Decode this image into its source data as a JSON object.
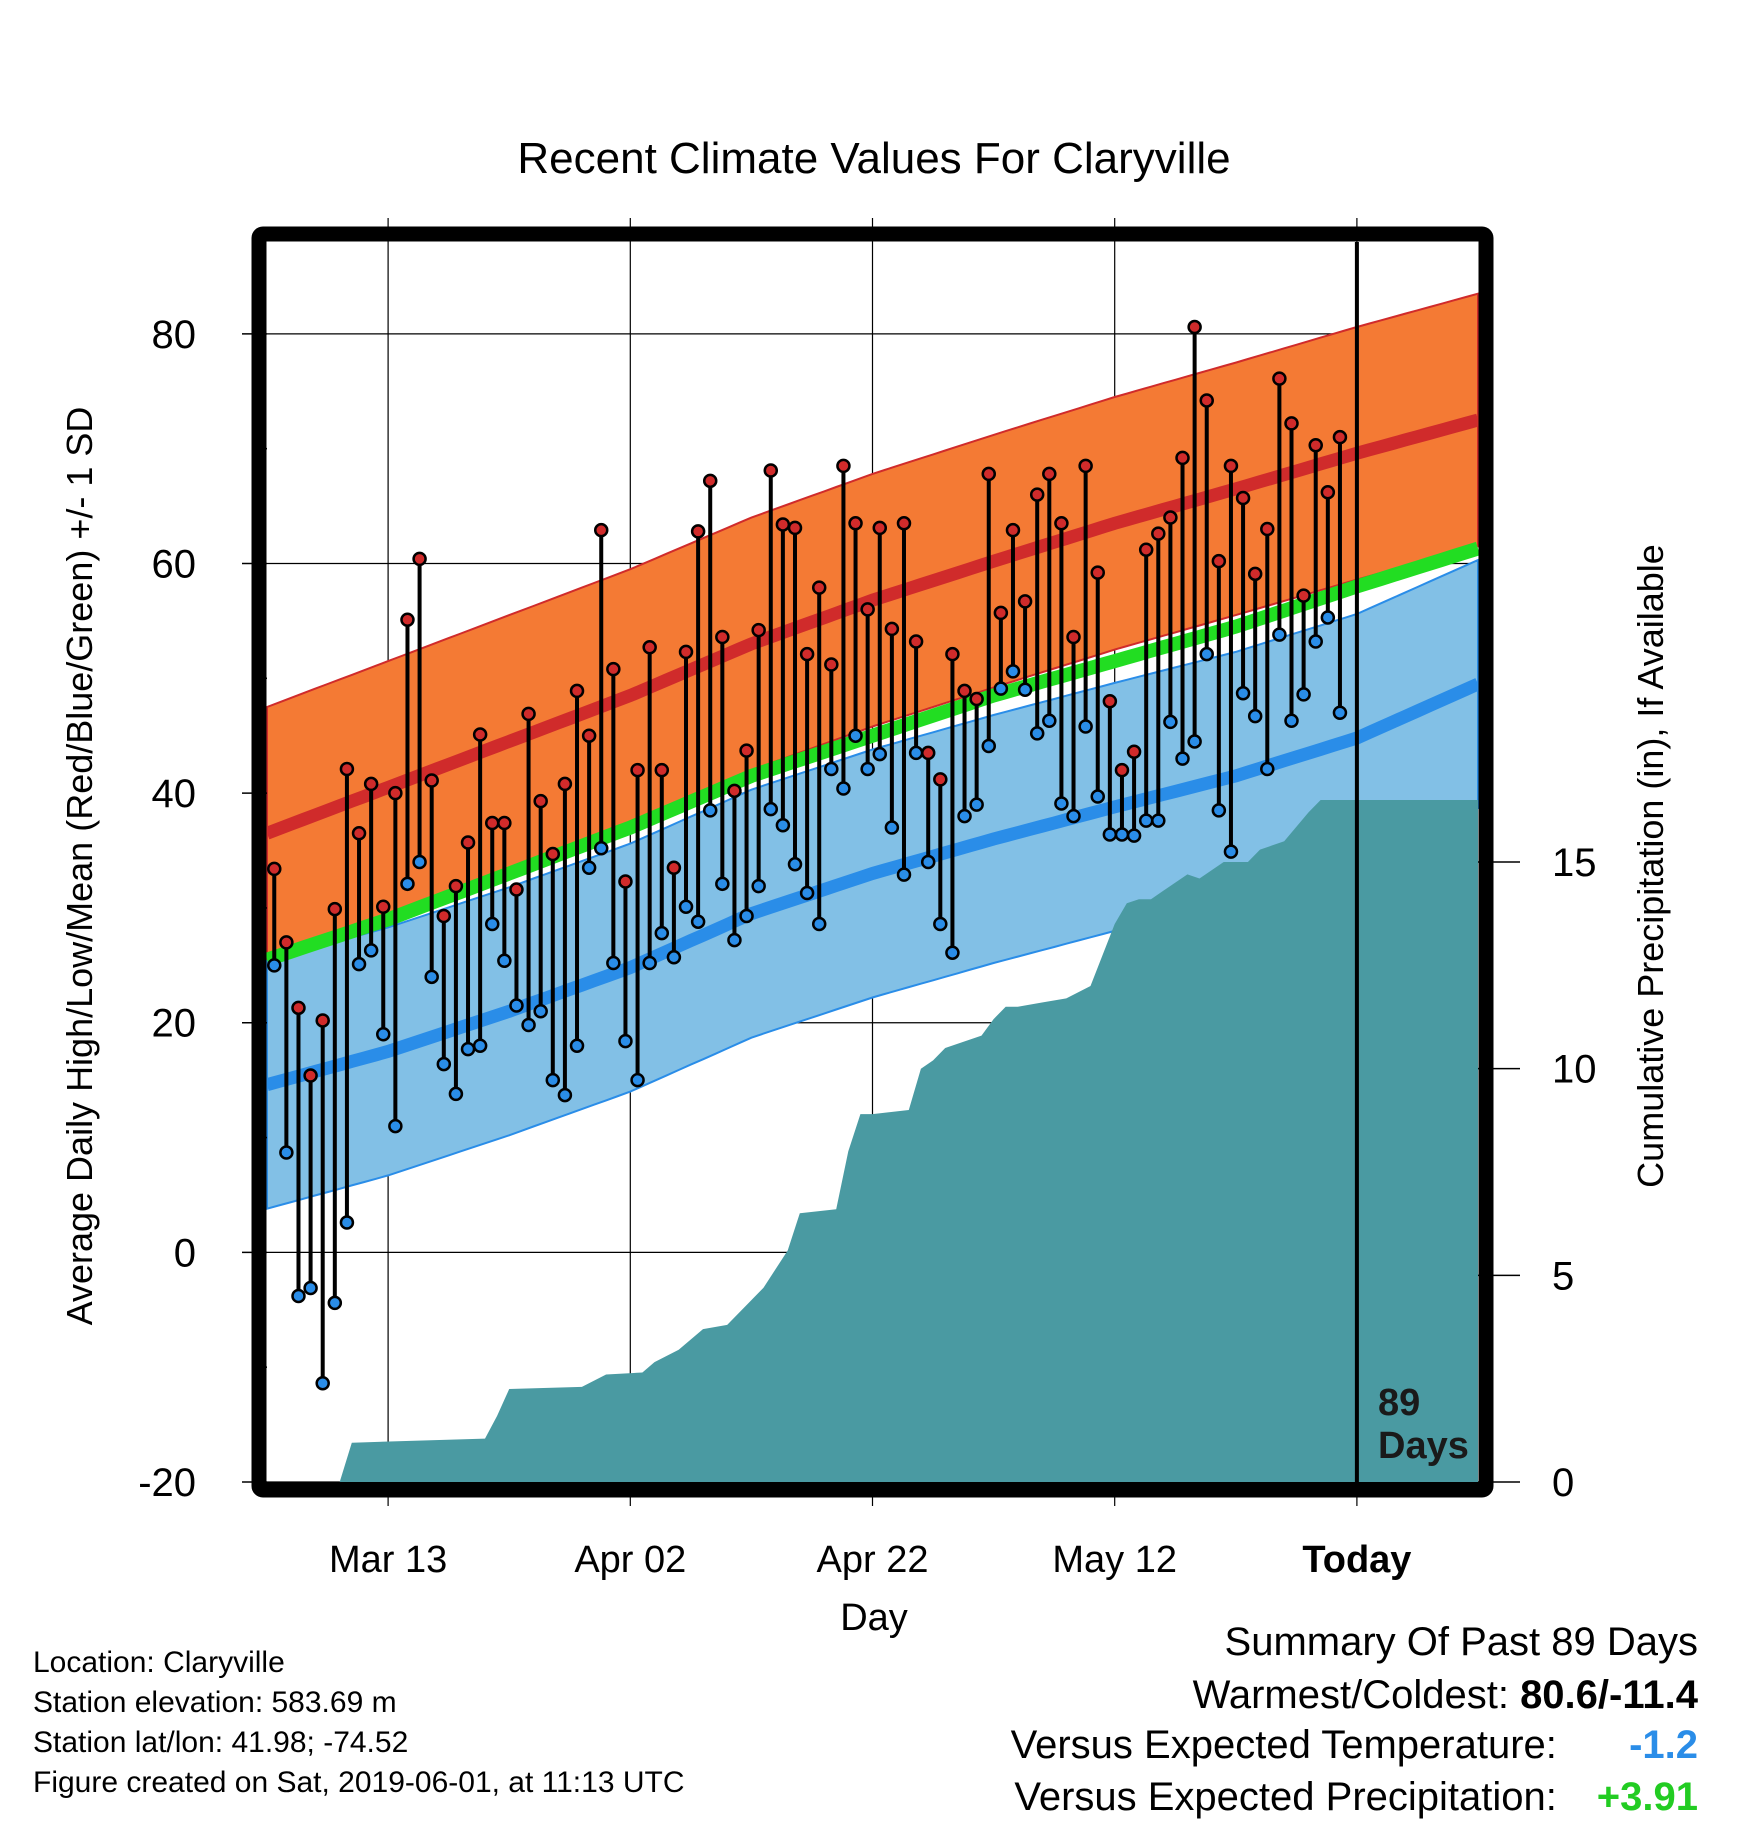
{
  "chart_data": {
    "type": "line",
    "title": "Recent Climate Values For Claryville",
    "xlabel": "Day",
    "ylabel": "Average Daily High/Low/Mean (Red/Blue/Green) +/- 1 SD",
    "y2label": "Cumulative Precipitation (in), If Available",
    "ylim": [
      -20,
      88
    ],
    "y2lim": [
      0,
      30
    ],
    "xlim_days": [
      0,
      100
    ],
    "yticks": [
      "-20",
      "0",
      "20",
      "40",
      "60",
      "80"
    ],
    "y2ticks": [
      "0",
      "5",
      "10",
      "15"
    ],
    "xticks": [
      {
        "day": 10,
        "label": "Mar 13"
      },
      {
        "day": 30,
        "label": "Apr 02"
      },
      {
        "day": 50,
        "label": "Apr 22"
      },
      {
        "day": 70,
        "label": "May 12"
      },
      {
        "day": 90,
        "label": "Today"
      }
    ],
    "today_marker": {
      "day": 90,
      "label_1": "89",
      "label_2": "Days"
    },
    "normal_high": {
      "x": [
        0,
        10,
        20,
        30,
        40,
        50,
        60,
        70,
        80,
        90,
        100
      ],
      "mean": [
        36.5,
        40.5,
        44.5,
        48.5,
        53,
        56.8,
        60.2,
        63.5,
        66.5,
        69.6,
        72.5
      ],
      "sd": 11
    },
    "normal_low": {
      "x": [
        0,
        10,
        20,
        30,
        40,
        50,
        60,
        70,
        80,
        90,
        100
      ],
      "mean": [
        14.6,
        17.5,
        21,
        24.8,
        29.5,
        33,
        36,
        38.8,
        41.5,
        44.8,
        49.5
      ],
      "sd": 10.8
    },
    "normal_mean": {
      "x": [
        0,
        10,
        20,
        30,
        40,
        50,
        60,
        70,
        80,
        90,
        100
      ],
      "values": [
        25.5,
        29,
        33,
        37,
        41.5,
        45,
        48.5,
        51.5,
        54.5,
        58,
        61.3
      ]
    },
    "daily": [
      {
        "high": 33.4,
        "low": 25
      },
      {
        "high": 27,
        "low": 8.7
      },
      {
        "high": 21.3,
        "low": -3.8
      },
      {
        "high": 15.4,
        "low": -3.1
      },
      {
        "high": 20.2,
        "low": -11.4
      },
      {
        "high": 29.9,
        "low": -4.4
      },
      {
        "high": 42.1,
        "low": 2.6
      },
      {
        "high": 36.5,
        "low": 25.1
      },
      {
        "high": 40.8,
        "low": 26.3
      },
      {
        "high": 30.1,
        "low": 19
      },
      {
        "high": 40,
        "low": 11
      },
      {
        "high": 55.1,
        "low": 32.1
      },
      {
        "high": 60.4,
        "low": 34
      },
      {
        "high": 41.1,
        "low": 24
      },
      {
        "high": 29.3,
        "low": 16.4
      },
      {
        "high": 31.9,
        "low": 13.8
      },
      {
        "high": 35.7,
        "low": 17.7
      },
      {
        "high": 45.1,
        "low": 18
      },
      {
        "high": 37.4,
        "low": 28.6
      },
      {
        "high": 37.4,
        "low": 25.4
      },
      {
        "high": 31.6,
        "low": 21.5
      },
      {
        "high": 46.9,
        "low": 19.8
      },
      {
        "high": 39.3,
        "low": 21
      },
      {
        "high": 34.7,
        "low": 15
      },
      {
        "high": 40.8,
        "low": 13.7
      },
      {
        "high": 48.9,
        "low": 18
      },
      {
        "high": 45,
        "low": 33.5
      },
      {
        "high": 62.9,
        "low": 35.2
      },
      {
        "high": 50.8,
        "low": 25.2
      },
      {
        "high": 32.3,
        "low": 18.4
      },
      {
        "high": 42,
        "low": 15
      },
      {
        "high": 52.7,
        "low": 25.2
      },
      {
        "high": 42,
        "low": 27.8
      },
      {
        "high": 33.5,
        "low": 25.7
      },
      {
        "high": 52.3,
        "low": 30.1
      },
      {
        "high": 62.8,
        "low": 28.8
      },
      {
        "high": 67.2,
        "low": 38.5
      },
      {
        "high": 53.6,
        "low": 32.1
      },
      {
        "high": 40.2,
        "low": 27.2
      },
      {
        "high": 43.7,
        "low": 29.3
      },
      {
        "high": 54.2,
        "low": 31.9
      },
      {
        "high": 68.1,
        "low": 38.6
      },
      {
        "high": 63.4,
        "low": 37.2
      },
      {
        "high": 63.1,
        "low": 33.8
      },
      {
        "high": 52.1,
        "low": 31.3
      },
      {
        "high": 57.9,
        "low": 28.6
      },
      {
        "high": 51.2,
        "low": 42.1
      },
      {
        "high": 68.5,
        "low": 40.4
      },
      {
        "high": 63.5,
        "low": 45
      },
      {
        "high": 56,
        "low": 42.1
      },
      {
        "high": 63.1,
        "low": 43.4
      },
      {
        "high": 54.3,
        "low": 37
      },
      {
        "high": 63.5,
        "low": 32.9
      },
      {
        "high": 53.2,
        "low": 43.5
      },
      {
        "high": 43.5,
        "low": 34
      }
    ],
    "daily_late": [
      {
        "high": 41.2,
        "low": 28.6
      },
      {
        "high": 52.1,
        "low": 26.1
      },
      {
        "high": 48.9,
        "low": 38
      },
      {
        "high": 48.2,
        "low": 39
      },
      {
        "high": 67.8,
        "low": 44.1
      },
      {
        "high": 55.7,
        "low": 49.1
      },
      {
        "high": 62.9,
        "low": 50.6
      },
      {
        "high": 56.7,
        "low": 49
      },
      {
        "high": 66,
        "low": 45.2
      },
      {
        "high": 67.8,
        "low": 46.3
      },
      {
        "high": 63.5,
        "low": 39.1
      },
      {
        "high": 53.6,
        "low": 38
      },
      {
        "high": 68.5,
        "low": 45.8
      },
      {
        "high": 59.2,
        "low": 39.7
      },
      {
        "high": 48,
        "low": 36.4
      },
      {
        "high": 42,
        "low": 36.4
      },
      {
        "high": 43.6,
        "low": 36.3
      },
      {
        "high": 61.2,
        "low": 37.6
      },
      {
        "high": 62.6,
        "low": 37.6
      },
      {
        "high": 64,
        "low": 46.2
      },
      {
        "high": 69.2,
        "low": 43
      },
      {
        "high": 80.6,
        "low": 44.5
      },
      {
        "high": 74.2,
        "low": 52.1
      },
      {
        "high": 60.2,
        "low": 38.5
      },
      {
        "high": 68.5,
        "low": 34.9
      },
      {
        "high": 65.7,
        "low": 48.7
      },
      {
        "high": 59.1,
        "low": 46.7
      },
      {
        "high": 63,
        "low": 42.1
      },
      {
        "high": 76.1,
        "low": 53.8
      },
      {
        "high": 72.2,
        "low": 46.3
      },
      {
        "high": 57.2,
        "low": 48.6
      },
      {
        "high": 70.3,
        "low": 53.2
      },
      {
        "high": 66.2,
        "low": 55.3
      },
      {
        "high": 71,
        "low": 47
      }
    ],
    "precip": {
      "x": [
        6,
        7,
        18,
        19,
        20,
        26,
        28,
        31,
        32,
        34,
        36,
        38,
        41,
        43,
        44,
        47,
        48,
        49,
        50,
        53,
        54,
        55,
        56,
        58,
        59,
        60,
        61,
        62,
        64,
        66,
        68,
        70,
        71,
        72,
        73,
        74,
        76,
        77,
        79,
        81,
        82,
        84,
        86,
        87,
        88,
        89,
        100
      ],
      "y": [
        0,
        0.95,
        1.05,
        1.6,
        2.25,
        2.3,
        2.6,
        2.65,
        2.9,
        3.2,
        3.7,
        3.8,
        4.7,
        5.6,
        6.5,
        6.6,
        8.0,
        8.9,
        8.9,
        9.0,
        10.0,
        10.2,
        10.5,
        10.7,
        10.8,
        11.2,
        11.5,
        11.5,
        11.6,
        11.7,
        12.0,
        13.5,
        14.0,
        14.1,
        14.1,
        14.3,
        14.7,
        14.6,
        15.0,
        15.0,
        15.3,
        15.5,
        16.2,
        16.5,
        16.5,
        16.5,
        16.5
      ]
    }
  },
  "footer": {
    "location": "Location: Claryville",
    "elevation": "Station elevation: 583.69 m",
    "latlon": "Station lat/lon: 41.98; -74.52",
    "created": "Figure created on Sat, 2019-06-01, at 11:13 UTC"
  },
  "summary": {
    "heading": "Summary Of Past 89 Days",
    "warmest_label": "Warmest/Coldest:",
    "warmest_value": "80.6/-11.4",
    "temp_label": "Versus Expected Temperature:",
    "temp_value": "-1.2",
    "precip_label": "Versus Expected Precipitation:",
    "precip_value": "+3.91"
  },
  "colors": {
    "high_band": "#f47a34",
    "high_line": "#d02b2b",
    "low_band": "#82c0e6",
    "low_line": "#2a8de8",
    "mean_line": "#22dd22",
    "precip_fill": "#4a9aa2",
    "marker_high": "#d02b2b",
    "marker_low": "#2a8de8",
    "temp_value": "#2a8de8",
    "precip_value": "#22cc22"
  }
}
